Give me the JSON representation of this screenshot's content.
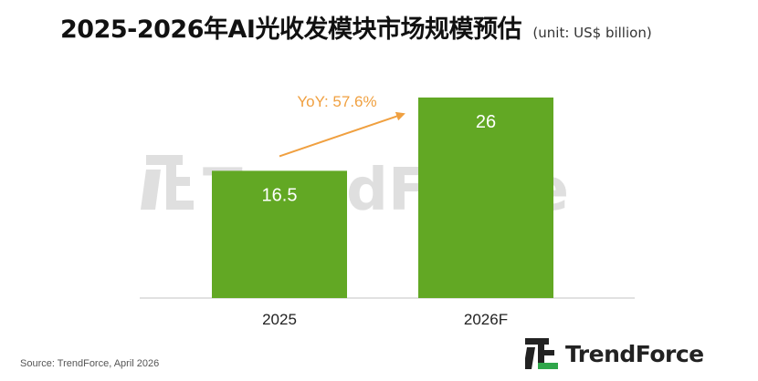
{
  "header": {
    "title": "2025-2026年AI光收发模块市场规模预估",
    "unit": "(unit: US$ billion)"
  },
  "chart_data": {
    "type": "bar",
    "categories": [
      "2025",
      "2026F"
    ],
    "values": [
      16.5,
      26
    ],
    "value_labels": [
      "16.5",
      "26"
    ],
    "ylim": [
      0,
      26
    ],
    "bar_color": "#62a824",
    "label_color": "#ffffff",
    "annotation": {
      "text": "YoY: 57.6%",
      "color": "#f0a040"
    },
    "watermark": "TrendForce",
    "grid": false
  },
  "footer": {
    "source": "Source: TrendForce, April 2026",
    "logo_text": "TrendForce"
  }
}
